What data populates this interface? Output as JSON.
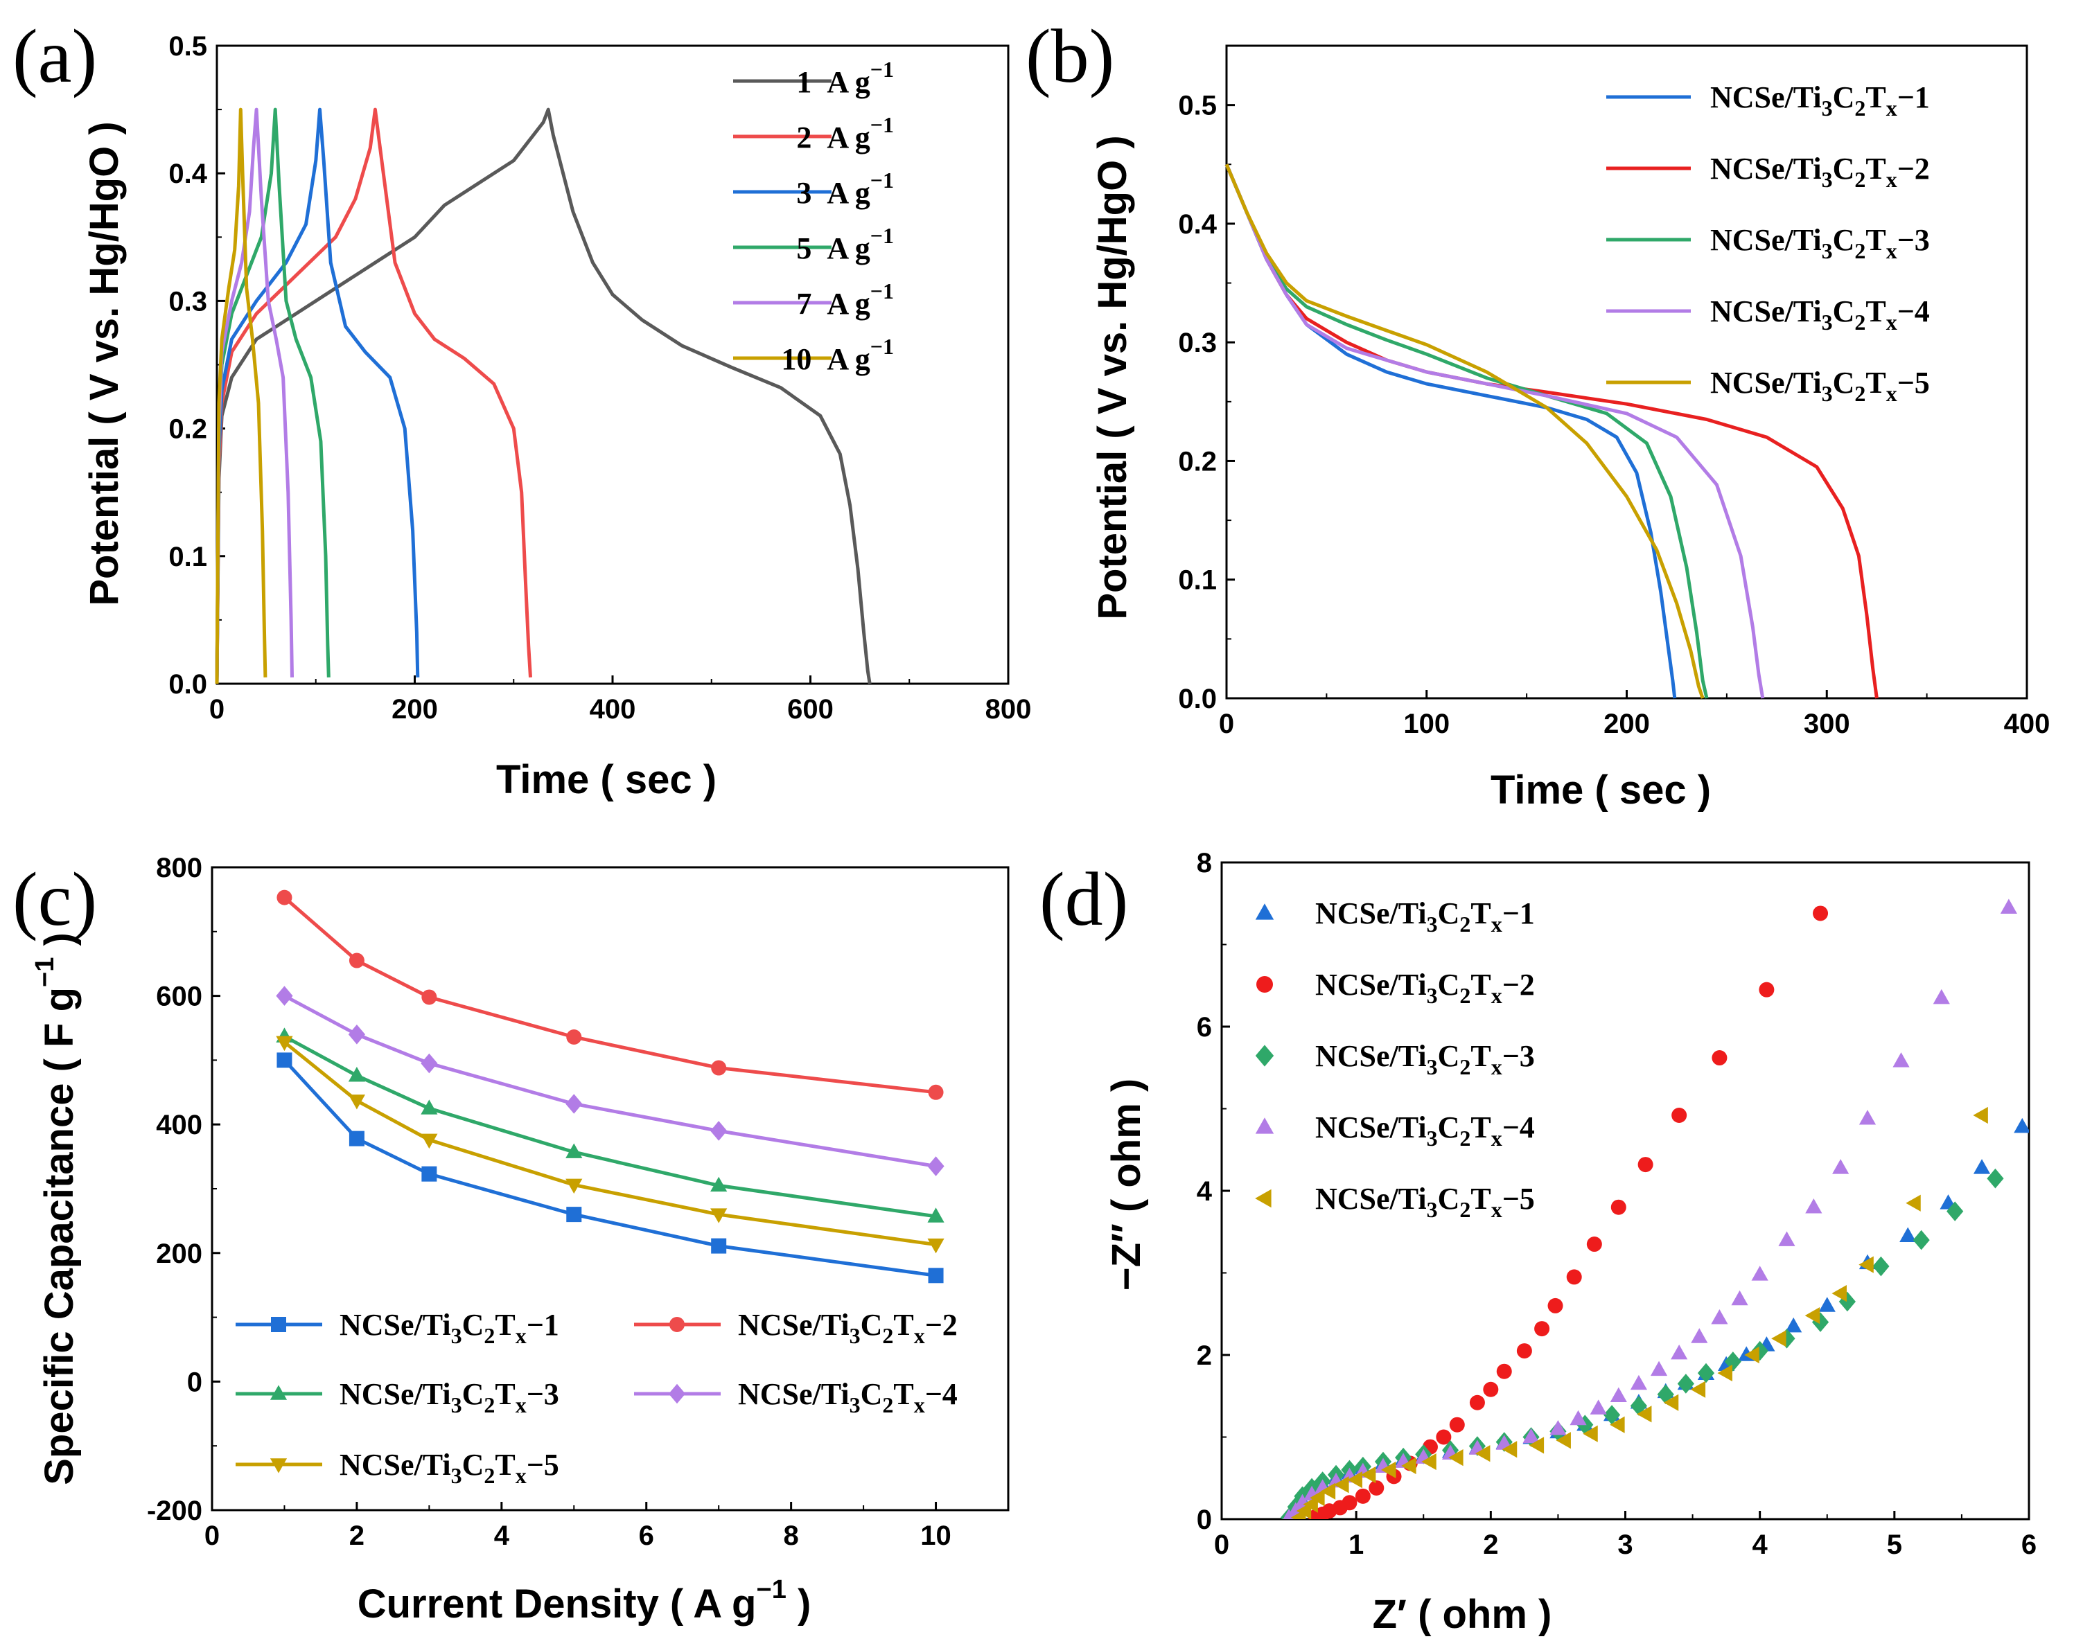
{
  "chart_data": [
    {
      "type": "line",
      "panel": "(a)",
      "xlabel": "Time ( sec )",
      "ylabel": "Potential ( V vs. Hg/HgO )",
      "xlim": [
        0,
        800
      ],
      "ylim": [
        0,
        0.5
      ],
      "xticks": [
        0,
        200,
        400,
        600,
        800
      ],
      "yticks": [
        0.0,
        0.1,
        0.2,
        0.3,
        0.4,
        0.5
      ],
      "legend_position": "top-right",
      "series": [
        {
          "name": "1 A g−1",
          "num": "1",
          "color": "#595959",
          "x": [
            0,
            2,
            5,
            15,
            40,
            100,
            160,
            200,
            230,
            260,
            300,
            330,
            335,
            340,
            360,
            380,
            400,
            430,
            470,
            520,
            570,
            610,
            630,
            640,
            648,
            654,
            658,
            660
          ],
          "y": [
            0.0,
            0.16,
            0.21,
            0.24,
            0.27,
            0.3,
            0.33,
            0.35,
            0.375,
            0.39,
            0.41,
            0.44,
            0.45,
            0.43,
            0.37,
            0.33,
            0.305,
            0.285,
            0.265,
            0.248,
            0.232,
            0.21,
            0.18,
            0.14,
            0.09,
            0.04,
            0.01,
            0.0
          ]
        },
        {
          "name": "2 A g−1",
          "num": "2",
          "color": "#ee4b4b",
          "x": [
            0,
            2,
            5,
            15,
            40,
            80,
            120,
            140,
            155,
            160,
            165,
            180,
            200,
            220,
            250,
            280,
            300,
            308,
            312,
            315,
            317
          ],
          "y": [
            0.0,
            0.17,
            0.22,
            0.26,
            0.29,
            0.32,
            0.35,
            0.38,
            0.42,
            0.45,
            0.42,
            0.33,
            0.29,
            0.27,
            0.255,
            0.235,
            0.2,
            0.15,
            0.08,
            0.03,
            0.005
          ]
        },
        {
          "name": "3 A g−1",
          "num": "3",
          "color": "#1f6fd6",
          "x": [
            0,
            2,
            5,
            15,
            40,
            70,
            90,
            100,
            104,
            108,
            115,
            130,
            150,
            175,
            190,
            198,
            202,
            203
          ],
          "y": [
            0.0,
            0.18,
            0.23,
            0.27,
            0.3,
            0.33,
            0.36,
            0.41,
            0.45,
            0.41,
            0.33,
            0.28,
            0.26,
            0.24,
            0.2,
            0.12,
            0.04,
            0.005
          ]
        },
        {
          "name": "5 A g−1",
          "num": "5",
          "color": "#2fa869",
          "x": [
            0,
            2,
            5,
            15,
            30,
            45,
            55,
            59,
            63,
            70,
            80,
            95,
            105,
            110,
            112,
            113
          ],
          "y": [
            0.0,
            0.2,
            0.25,
            0.29,
            0.32,
            0.35,
            0.4,
            0.45,
            0.39,
            0.3,
            0.27,
            0.24,
            0.19,
            0.1,
            0.03,
            0.005
          ]
        },
        {
          "name": "7 A g−1",
          "num": "7",
          "color": "#b27ce6",
          "x": [
            0,
            2,
            5,
            15,
            25,
            33,
            37,
            40,
            45,
            52,
            60,
            67,
            72,
            75,
            76
          ],
          "y": [
            0.0,
            0.2,
            0.26,
            0.3,
            0.33,
            0.37,
            0.42,
            0.45,
            0.38,
            0.3,
            0.27,
            0.24,
            0.15,
            0.05,
            0.005
          ]
        },
        {
          "name": "10 A g−1",
          "num": "10",
          "color": "#c8a000",
          "x": [
            0,
            2,
            5,
            12,
            18,
            22,
            24,
            26,
            30,
            36,
            42,
            46,
            48,
            49
          ],
          "y": [
            0.0,
            0.22,
            0.27,
            0.31,
            0.34,
            0.39,
            0.45,
            0.4,
            0.31,
            0.27,
            0.22,
            0.12,
            0.04,
            0.005
          ]
        }
      ]
    },
    {
      "type": "line",
      "panel": "(b)",
      "xlabel": "Time ( sec )",
      "ylabel": "Potential ( V vs. Hg/HgO )",
      "xlim": [
        0,
        400
      ],
      "ylim": [
        0,
        0.55
      ],
      "xticks": [
        0,
        100,
        200,
        300,
        400
      ],
      "yticks": [
        0.0,
        0.1,
        0.2,
        0.3,
        0.4,
        0.5
      ],
      "legend_position": "top-right",
      "series": [
        {
          "name": "NCSe/Ti3C2Tx−1",
          "sfx": "1",
          "color": "#1f6fd6",
          "x": [
            0,
            10,
            20,
            30,
            40,
            60,
            80,
            100,
            130,
            160,
            180,
            195,
            205,
            212,
            217,
            221,
            223,
            224
          ],
          "y": [
            0.45,
            0.41,
            0.37,
            0.34,
            0.315,
            0.29,
            0.275,
            0.265,
            0.255,
            0.245,
            0.235,
            0.22,
            0.19,
            0.14,
            0.09,
            0.04,
            0.015,
            0.0
          ]
        },
        {
          "name": "NCSe/Ti3C2Tx−2",
          "sfx": "2",
          "color": "#e82020",
          "x": [
            0,
            10,
            20,
            30,
            40,
            60,
            80,
            100,
            130,
            160,
            200,
            240,
            270,
            295,
            308,
            316,
            320,
            323,
            325
          ],
          "y": [
            0.45,
            0.41,
            0.37,
            0.34,
            0.32,
            0.3,
            0.285,
            0.275,
            0.265,
            0.258,
            0.248,
            0.235,
            0.22,
            0.195,
            0.16,
            0.12,
            0.07,
            0.025,
            0.0
          ]
        },
        {
          "name": "NCSe/Ti3C2Tx−3",
          "sfx": "3",
          "color": "#2fa869",
          "x": [
            0,
            10,
            20,
            30,
            40,
            60,
            80,
            100,
            130,
            160,
            190,
            210,
            222,
            230,
            235,
            238,
            240
          ],
          "y": [
            0.45,
            0.41,
            0.37,
            0.345,
            0.33,
            0.315,
            0.302,
            0.29,
            0.27,
            0.255,
            0.24,
            0.215,
            0.17,
            0.11,
            0.055,
            0.015,
            0.0
          ]
        },
        {
          "name": "NCSe/Ti3C2Tx−4",
          "sfx": "4",
          "color": "#b27ce6",
          "x": [
            0,
            10,
            20,
            30,
            40,
            60,
            80,
            100,
            130,
            160,
            200,
            225,
            245,
            257,
            263,
            266,
            268
          ],
          "y": [
            0.45,
            0.41,
            0.37,
            0.34,
            0.315,
            0.295,
            0.285,
            0.275,
            0.265,
            0.255,
            0.24,
            0.22,
            0.18,
            0.12,
            0.06,
            0.02,
            0.0
          ]
        },
        {
          "name": "NCSe/Ti3C2Tx−5",
          "sfx": "5",
          "color": "#c8a000",
          "x": [
            0,
            10,
            20,
            30,
            40,
            60,
            80,
            100,
            130,
            160,
            180,
            200,
            215,
            225,
            232,
            236,
            238
          ],
          "y": [
            0.45,
            0.41,
            0.375,
            0.35,
            0.335,
            0.322,
            0.31,
            0.298,
            0.275,
            0.245,
            0.215,
            0.17,
            0.125,
            0.08,
            0.04,
            0.01,
            0.0
          ]
        }
      ]
    },
    {
      "type": "line",
      "panel": "(c)",
      "xlabel": "Current Density ( A g−1 )",
      "ylabel": "Specific Capacitance ( F g−1 )",
      "xlim": [
        0,
        11
      ],
      "ylim": [
        -200,
        800
      ],
      "xticks": [
        0,
        2,
        4,
        6,
        8,
        10
      ],
      "yticks": [
        -200,
        0,
        200,
        400,
        600,
        800
      ],
      "legend_position": "bottom-center",
      "categories": [
        1,
        2,
        3,
        5,
        7,
        10
      ],
      "series": [
        {
          "name": "NCSe/Ti3C2Tx−1",
          "sfx": "1",
          "color": "#1f6fd6",
          "marker": "square",
          "values": [
            500,
            378,
            323,
            260,
            211,
            165
          ]
        },
        {
          "name": "NCSe/Ti3C2Tx−2",
          "sfx": "2",
          "color": "#ee4b4b",
          "marker": "circle",
          "values": [
            753,
            655,
            598,
            536,
            488,
            450
          ]
        },
        {
          "name": "NCSe/Ti3C2Tx−3",
          "sfx": "3",
          "color": "#2fa869",
          "marker": "triangle-up",
          "values": [
            537,
            476,
            425,
            357,
            305,
            257
          ]
        },
        {
          "name": "NCSe/Ti3C2Tx−4",
          "sfx": "4",
          "color": "#b27ce6",
          "marker": "diamond",
          "values": [
            600,
            540,
            495,
            432,
            390,
            335
          ]
        },
        {
          "name": "NCSe/Ti3C2Tx−5",
          "sfx": "5",
          "color": "#c8a000",
          "marker": "triangle-down",
          "values": [
            528,
            437,
            376,
            306,
            260,
            213
          ]
        }
      ]
    },
    {
      "type": "scatter",
      "panel": "(d)",
      "xlabel": "Z′ ( ohm )",
      "ylabel": "−Z″ ( ohm )",
      "xlim": [
        0,
        6
      ],
      "ylim": [
        0,
        8
      ],
      "xticks": [
        0,
        1,
        2,
        3,
        4,
        5,
        6
      ],
      "yticks": [
        0,
        2,
        4,
        6,
        8
      ],
      "legend_position": "top-left",
      "series": [
        {
          "name": "NCSe/Ti3C2Tx−1",
          "sfx": "1",
          "color": "#1f6fd6",
          "marker": "triangle-up",
          "x": [
            0.5,
            0.55,
            0.6,
            0.67,
            0.75,
            0.85,
            0.95,
            1.05,
            1.2,
            1.35,
            1.5,
            1.7,
            1.9,
            2.1,
            2.3,
            2.5,
            2.7,
            2.9,
            3.1,
            3.3,
            3.45,
            3.6,
            3.75,
            3.9,
            4.05,
            4.25,
            4.5,
            4.8,
            5.1,
            5.4,
            5.65,
            5.95
          ],
          "y": [
            0.02,
            0.12,
            0.22,
            0.32,
            0.42,
            0.5,
            0.56,
            0.62,
            0.68,
            0.73,
            0.77,
            0.82,
            0.87,
            0.93,
            0.99,
            1.06,
            1.15,
            1.27,
            1.42,
            1.55,
            1.65,
            1.77,
            1.88,
            2.0,
            2.12,
            2.35,
            2.6,
            3.12,
            3.45,
            3.85,
            4.28,
            4.78
          ]
        },
        {
          "name": "NCSe/Ti3C2Tx−2",
          "sfx": "2",
          "color": "#ee1c1c",
          "marker": "circle",
          "x": [
            0.7,
            0.75,
            0.8,
            0.88,
            0.95,
            1.05,
            1.15,
            1.28,
            1.4,
            1.55,
            1.65,
            1.75,
            1.9,
            2.0,
            2.1,
            2.25,
            2.38,
            2.48,
            2.62,
            2.77,
            2.95,
            3.15,
            3.4,
            3.7,
            4.05,
            4.45
          ],
          "y": [
            0.03,
            0.06,
            0.1,
            0.14,
            0.2,
            0.28,
            0.38,
            0.52,
            0.68,
            0.88,
            1.0,
            1.15,
            1.42,
            1.58,
            1.8,
            2.05,
            2.32,
            2.6,
            2.95,
            3.35,
            3.8,
            4.32,
            4.92,
            5.62,
            6.45,
            7.38
          ]
        },
        {
          "name": "NCSe/Ti3C2Tx−3",
          "sfx": "3",
          "color": "#2fa869",
          "marker": "diamond",
          "x": [
            0.5,
            0.55,
            0.6,
            0.67,
            0.75,
            0.85,
            0.95,
            1.05,
            1.2,
            1.35,
            1.5,
            1.7,
            1.9,
            2.1,
            2.3,
            2.5,
            2.7,
            2.9,
            3.1,
            3.3,
            3.45,
            3.6,
            3.8,
            4.0,
            4.2,
            4.45,
            4.65,
            4.9,
            5.2,
            5.45,
            5.75
          ],
          "y": [
            0.02,
            0.15,
            0.28,
            0.38,
            0.46,
            0.54,
            0.6,
            0.64,
            0.7,
            0.75,
            0.79,
            0.84,
            0.89,
            0.94,
            1.0,
            1.07,
            1.15,
            1.27,
            1.38,
            1.52,
            1.65,
            1.78,
            1.92,
            2.05,
            2.2,
            2.4,
            2.65,
            3.08,
            3.4,
            3.75,
            4.15
          ]
        },
        {
          "name": "NCSe/Ti3C2Tx−4",
          "sfx": "4",
          "color": "#b27ce6",
          "marker": "triangle-up",
          "x": [
            0.5,
            0.55,
            0.6,
            0.67,
            0.75,
            0.85,
            0.95,
            1.05,
            1.2,
            1.35,
            1.5,
            1.7,
            1.9,
            2.1,
            2.3,
            2.5,
            2.65,
            2.8,
            2.95,
            3.1,
            3.25,
            3.4,
            3.55,
            3.7,
            3.85,
            4.0,
            4.2,
            4.4,
            4.6,
            4.8,
            5.05,
            5.35,
            5.85
          ],
          "y": [
            0.02,
            0.1,
            0.2,
            0.3,
            0.38,
            0.46,
            0.52,
            0.58,
            0.64,
            0.7,
            0.75,
            0.8,
            0.86,
            0.92,
            1.0,
            1.1,
            1.22,
            1.35,
            1.5,
            1.65,
            1.82,
            2.02,
            2.22,
            2.45,
            2.68,
            2.98,
            3.4,
            3.8,
            4.28,
            4.88,
            5.58,
            6.35,
            7.45
          ]
        },
        {
          "name": "NCSe/Ti3C2Tx−5",
          "sfx": "5",
          "color": "#c8a000",
          "marker": "triangle-left",
          "x": [
            0.58,
            0.62,
            0.67,
            0.72,
            0.8,
            0.9,
            1.0,
            1.1,
            1.25,
            1.4,
            1.55,
            1.75,
            1.95,
            2.15,
            2.35,
            2.55,
            2.75,
            2.95,
            3.15,
            3.35,
            3.55,
            3.75,
            3.95,
            4.15,
            4.4,
            4.6,
            4.8,
            5.15,
            5.65
          ],
          "y": [
            0.02,
            0.1,
            0.18,
            0.26,
            0.34,
            0.42,
            0.48,
            0.54,
            0.6,
            0.65,
            0.7,
            0.75,
            0.8,
            0.85,
            0.9,
            0.96,
            1.04,
            1.15,
            1.28,
            1.42,
            1.58,
            1.78,
            2.0,
            2.2,
            2.48,
            2.75,
            3.1,
            3.85,
            4.92
          ]
        }
      ]
    }
  ],
  "panel_labels": [
    "(a)",
    "(b)",
    "(c)",
    "(d)"
  ],
  "legend_units": {
    "a_unit": "A g",
    "a_exp": "−1"
  },
  "formula": {
    "base": "NCSe/Ti",
    "s3": "3",
    "c": "C",
    "s2": "2",
    "t": "T",
    "sx": "x",
    "dash": "−"
  }
}
